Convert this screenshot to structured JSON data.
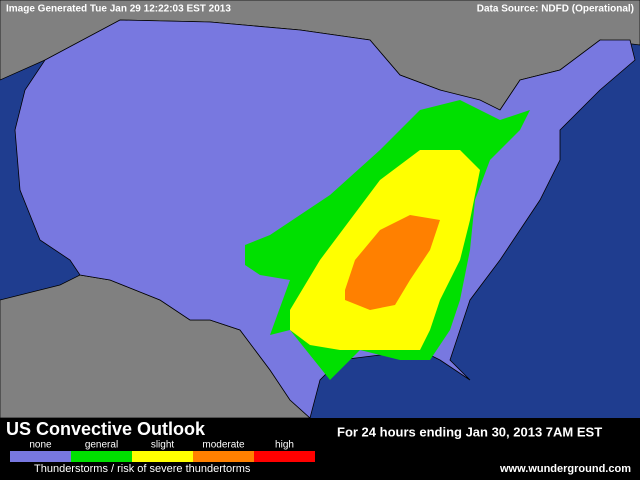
{
  "header": {
    "generated": "Image Generated Tue Jan 29 12:22:03 EST 2013",
    "source": "Data Source: NDFD (Operational)"
  },
  "panel": {
    "title": "US Convective Outlook",
    "legend": [
      {
        "label": "none",
        "color": "#7878e0"
      },
      {
        "label": "general",
        "color": "#00e000"
      },
      {
        "label": "slight",
        "color": "#ffff00"
      },
      {
        "label": "moderate",
        "color": "#ff8000"
      },
      {
        "label": "high",
        "color": "#ff0000"
      }
    ],
    "caption": "Thunderstorms / risk of severe thundertorms",
    "period": "For 24 hours ending Jan 30, 2013  7AM EST",
    "credit": "www.wunderground.com"
  }
}
